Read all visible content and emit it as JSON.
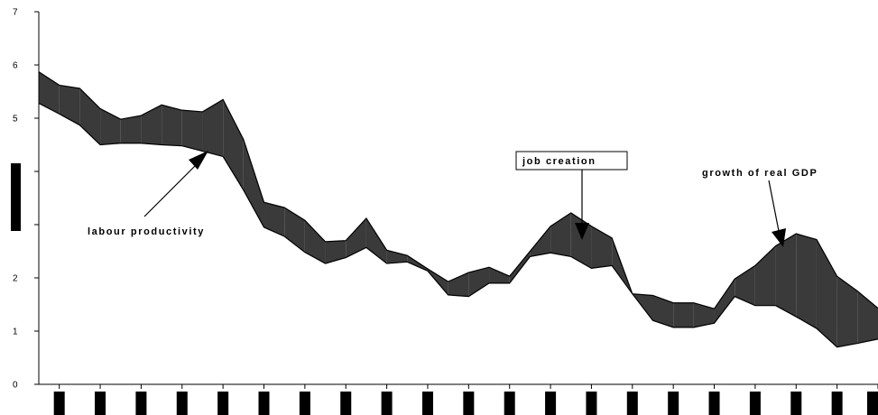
{
  "chart_data": {
    "type": "area",
    "ylim": [
      0,
      7
    ],
    "y_ticks": [
      "0",
      "1",
      "2",
      "3",
      "4",
      "5",
      "6",
      "7"
    ],
    "x_category_count": 21,
    "grid": false,
    "legend": "none",
    "series": [
      {
        "name": "growth of real GDP",
        "values": [
          5.87,
          5.62,
          5.56,
          5.18,
          4.98,
          5.05,
          5.25,
          5.15,
          5.12,
          5.35,
          4.6,
          3.42,
          3.32,
          3.08,
          2.68,
          2.7,
          3.12,
          2.52,
          2.42,
          2.17,
          1.93,
          2.1,
          2.2,
          2.03,
          2.5,
          2.97,
          3.22,
          2.97,
          2.75,
          1.7,
          1.67,
          1.53,
          1.53,
          1.42,
          1.98,
          2.23,
          2.6,
          2.83,
          2.72,
          2.03,
          1.75,
          1.43
        ]
      },
      {
        "name": "labour productivity",
        "values": [
          5.28,
          5.08,
          4.87,
          4.5,
          4.53,
          4.53,
          4.5,
          4.48,
          4.38,
          4.28,
          3.65,
          2.95,
          2.78,
          2.48,
          2.27,
          2.38,
          2.57,
          2.27,
          2.3,
          2.13,
          1.68,
          1.65,
          1.9,
          1.9,
          2.4,
          2.47,
          2.4,
          2.18,
          2.23,
          1.7,
          1.2,
          1.07,
          1.07,
          1.15,
          1.65,
          1.48,
          1.48,
          1.27,
          1.05,
          0.7,
          0.77,
          0.85
        ]
      }
    ],
    "annotations": {
      "labour_productivity": "labour productivity",
      "job_creation": "job creation",
      "growth_of_real_gdp": "growth of real GDP"
    },
    "colors": {
      "job_creation_fill": "#3a3a3a",
      "job_loss_fill": "#ffffff",
      "hatch": "#000000",
      "axis": "#000000"
    }
  }
}
